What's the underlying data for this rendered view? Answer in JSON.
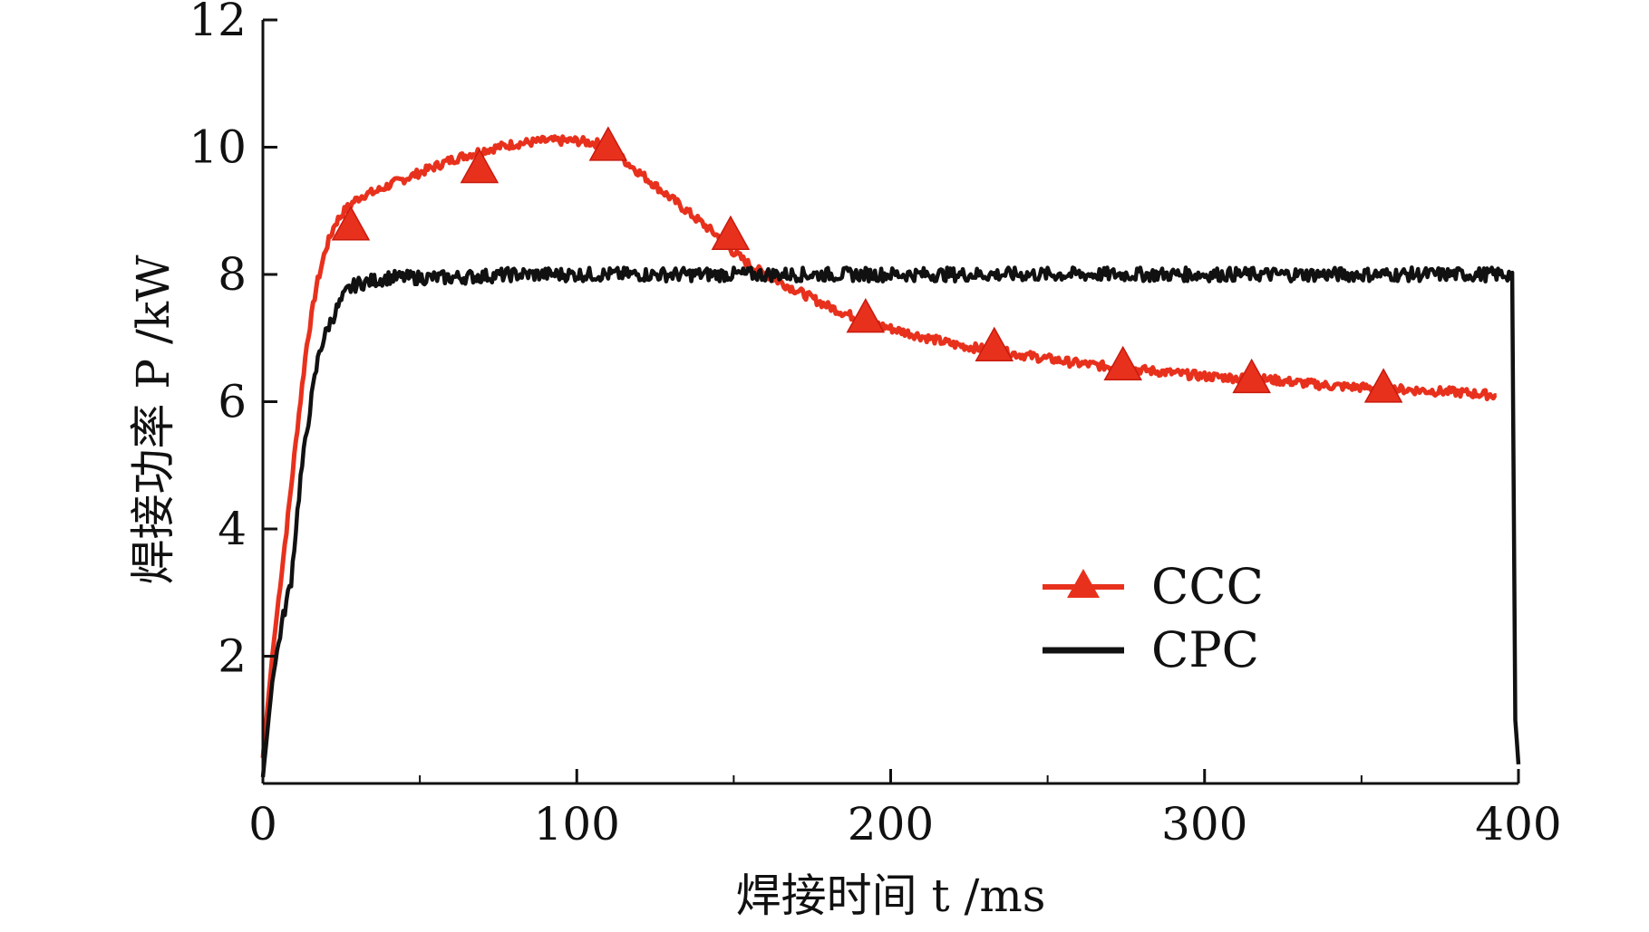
{
  "chart_data": {
    "type": "line",
    "xlabel": "焊接时间 t /ms",
    "ylabel": "焊接功率 P /kW",
    "xlim": [
      0,
      400
    ],
    "ylim": [
      0,
      12
    ],
    "x_ticks": [
      "0",
      "100",
      "200",
      "300",
      "400"
    ],
    "y_ticks": [
      "2",
      "4",
      "6",
      "8",
      "10",
      "12"
    ],
    "legend_position": "center-right",
    "series": [
      {
        "name": "CCC",
        "color": "#e8311d",
        "marker": "triangle",
        "x": [
          0,
          3,
          5,
          8,
          11,
          14,
          17,
          20,
          23,
          26,
          29,
          32,
          36,
          40,
          45,
          50,
          60,
          70,
          80,
          90,
          100,
          108,
          115,
          125,
          135,
          145,
          150,
          155,
          160,
          170,
          180,
          190,
          200,
          220,
          240,
          260,
          280,
          300,
          320,
          340,
          360,
          380,
          393
        ],
        "y": [
          0.4,
          2.0,
          2.9,
          4.2,
          5.6,
          6.9,
          7.8,
          8.4,
          8.8,
          9.0,
          9.15,
          9.25,
          9.3,
          9.4,
          9.5,
          9.6,
          9.8,
          9.95,
          10.05,
          10.1,
          10.1,
          10.05,
          9.8,
          9.4,
          9.0,
          8.6,
          8.35,
          8.15,
          8.0,
          7.75,
          7.5,
          7.3,
          7.15,
          6.9,
          6.75,
          6.6,
          6.5,
          6.4,
          6.35,
          6.25,
          6.2,
          6.15,
          6.1
        ],
        "markers_x": [
          28,
          69,
          110,
          149,
          192,
          233,
          274,
          315,
          357
        ],
        "markers_y": [
          8.75,
          9.65,
          10.0,
          8.6,
          7.3,
          6.85,
          6.55,
          6.35,
          6.2
        ]
      },
      {
        "name": "CPC",
        "color": "#111111",
        "x": [
          0,
          3,
          6,
          9,
          12,
          15,
          18,
          21,
          24,
          27,
          30,
          35,
          40,
          45,
          50,
          60,
          80,
          100,
          120,
          140,
          160,
          180,
          200,
          220,
          240,
          260,
          280,
          300,
          320,
          340,
          360,
          380,
          398,
          399,
          400
        ],
        "y": [
          0.1,
          1.6,
          2.5,
          3.2,
          4.8,
          5.9,
          6.8,
          7.2,
          7.5,
          7.75,
          7.85,
          7.9,
          7.95,
          7.95,
          7.95,
          7.95,
          8.0,
          8.0,
          8.0,
          8.0,
          8.0,
          8.0,
          8.0,
          8.0,
          8.0,
          8.0,
          8.0,
          8.0,
          8.0,
          8.0,
          8.0,
          8.0,
          8.0,
          1.0,
          0.3
        ]
      }
    ]
  }
}
